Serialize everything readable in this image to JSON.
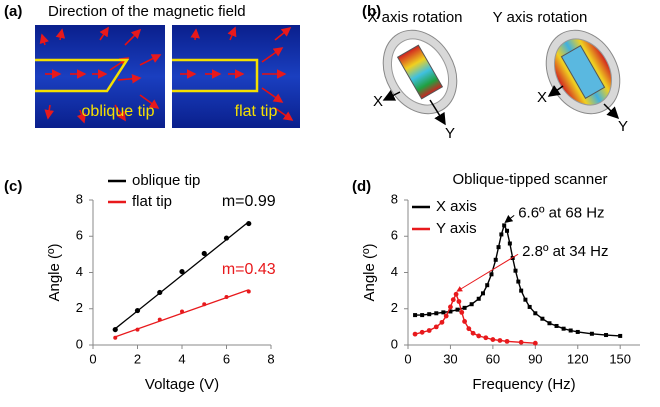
{
  "figure": {
    "a": {
      "label": "(a)",
      "title": "Direction of the magnetic field",
      "left_caption": "oblique tip",
      "right_caption": "flat tip"
    },
    "b": {
      "label": "(b)",
      "left_title": "X axis rotation",
      "right_title": "Y axis rotation",
      "left_axes": [
        "X",
        "Y"
      ],
      "right_axes": [
        "X",
        "Y"
      ]
    }
  },
  "chart_data": [
    {
      "type": "scatter",
      "panel_label": "(c)",
      "xlabel": "Voltage (V)",
      "ylabel": "Angle (º)",
      "xlim": [
        0,
        8
      ],
      "ylim": [
        0,
        8
      ],
      "xticks": [
        0,
        2,
        4,
        6,
        8
      ],
      "yticks": [
        0,
        2,
        4,
        6,
        8
      ],
      "series": [
        {
          "name": "oblique tip",
          "color": "#000000",
          "x": [
            1,
            2,
            3,
            4,
            5,
            6,
            7
          ],
          "values": [
            0.85,
            1.9,
            2.9,
            4.05,
            5.05,
            5.9,
            6.7
          ],
          "fit_x": [
            1,
            7
          ],
          "fit_values": [
            0.9,
            6.8
          ],
          "annotation": "m=0.99"
        },
        {
          "name": "flat tip",
          "color": "#e8191c",
          "x": [
            1,
            2,
            3,
            4,
            5,
            6,
            7
          ],
          "values": [
            0.4,
            0.85,
            1.4,
            1.85,
            2.25,
            2.65,
            2.95
          ],
          "fit_x": [
            1,
            7
          ],
          "fit_values": [
            0.45,
            3.05
          ],
          "annotation": "m=0.43"
        }
      ]
    },
    {
      "type": "line",
      "panel_label": "(d)",
      "title": "Oblique-tipped scanner",
      "xlabel": "Frequency (Hz)",
      "ylabel": "Angle (º)",
      "xlim": [
        0,
        164
      ],
      "ylim": [
        0,
        8
      ],
      "xticks": [
        0,
        30,
        60,
        90,
        120,
        150
      ],
      "yticks": [
        0,
        2,
        4,
        6,
        8
      ],
      "series": [
        {
          "name": "X axis",
          "color": "#000000",
          "x": [
            5,
            10,
            15,
            20,
            25,
            30,
            35,
            40,
            45,
            50,
            53,
            56,
            59,
            62,
            64,
            66,
            68,
            70,
            72,
            74,
            76,
            78,
            80,
            83,
            86,
            90,
            95,
            100,
            105,
            110,
            115,
            120,
            130,
            140,
            150
          ],
          "values": [
            1.65,
            1.65,
            1.7,
            1.75,
            1.8,
            1.85,
            1.95,
            2.05,
            2.25,
            2.55,
            2.85,
            3.3,
            3.9,
            4.7,
            5.4,
            6.1,
            6.6,
            6.3,
            5.6,
            4.8,
            4.1,
            3.5,
            3.0,
            2.5,
            2.1,
            1.75,
            1.45,
            1.2,
            1.05,
            0.9,
            0.8,
            0.72,
            0.62,
            0.55,
            0.5
          ],
          "annotation": {
            "text": "6.6º at 68 Hz",
            "x": 68,
            "y": 6.6
          }
        },
        {
          "name": "Y axis",
          "color": "#e8191c",
          "x": [
            5,
            10,
            15,
            20,
            24,
            27,
            30,
            32,
            34,
            36,
            38,
            40,
            43,
            46,
            50,
            55,
            60,
            65,
            70,
            80,
            90
          ],
          "values": [
            0.6,
            0.7,
            0.8,
            1.0,
            1.25,
            1.6,
            2.1,
            2.5,
            2.8,
            2.4,
            1.8,
            1.3,
            0.9,
            0.65,
            0.5,
            0.4,
            0.3,
            0.25,
            0.2,
            0.15,
            0.1
          ],
          "annotation": {
            "text": "2.8º at 34 Hz",
            "x": 34,
            "y": 2.8
          }
        }
      ]
    }
  ]
}
